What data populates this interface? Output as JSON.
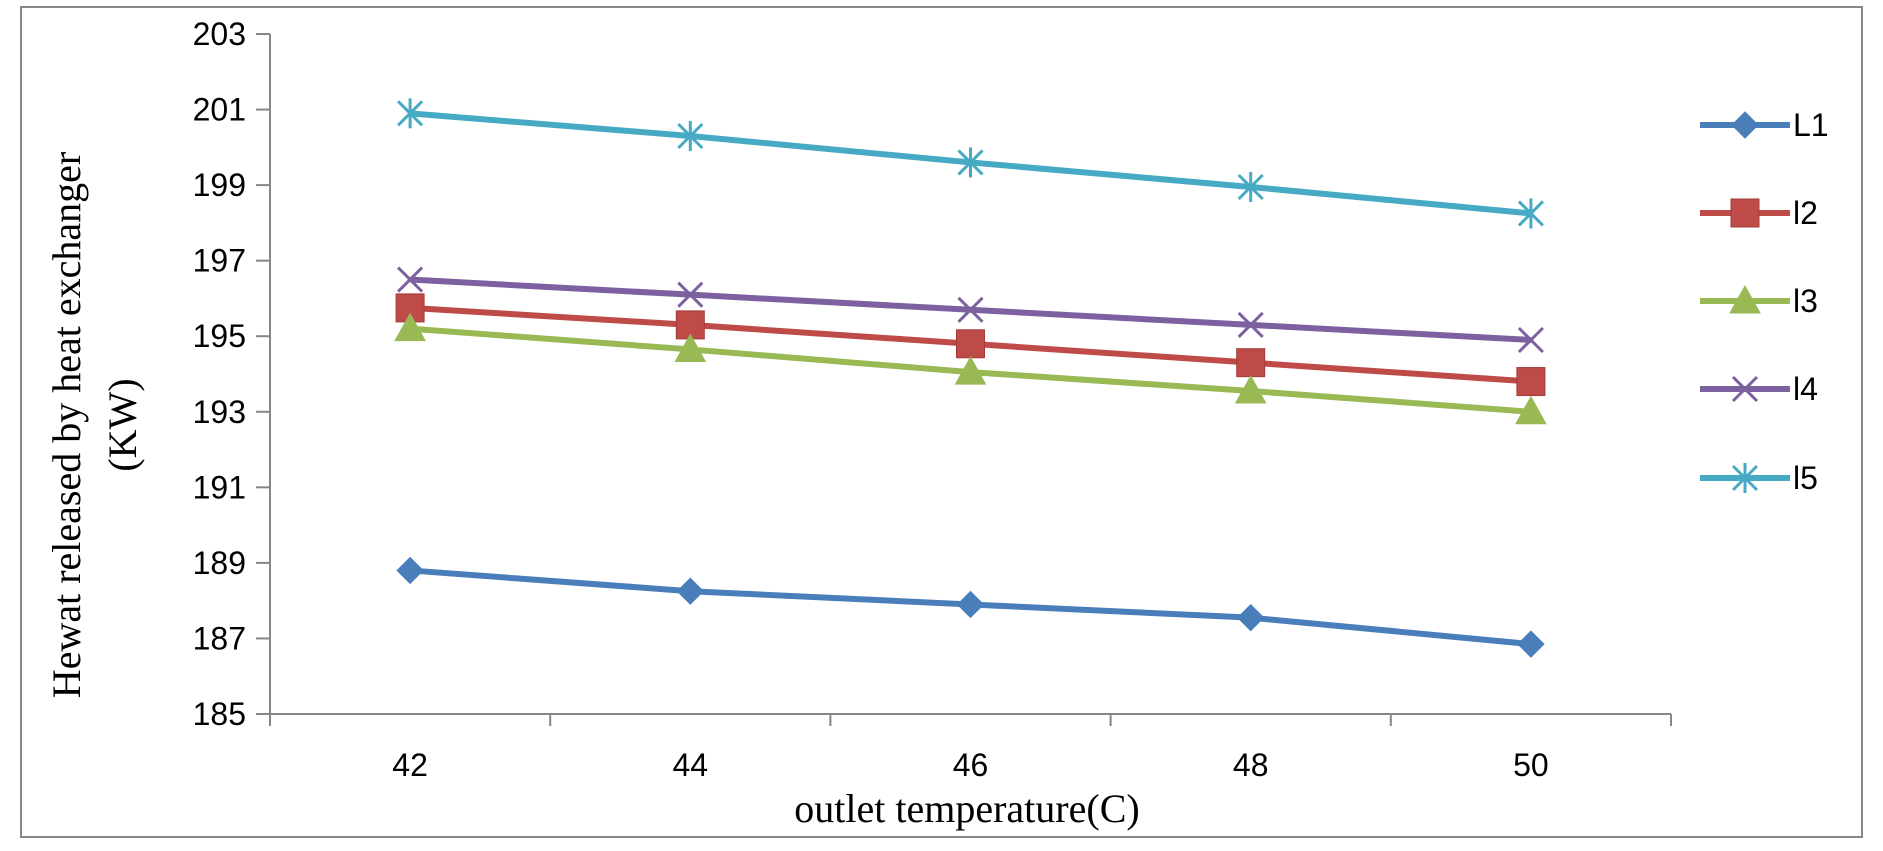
{
  "chart_data": {
    "type": "line",
    "title": "",
    "xlabel": "outlet temperature(C)",
    "ylabel_line1": "Hewat released by  heat exchanger",
    "ylabel_line2": "(KW)",
    "x": [
      42,
      44,
      46,
      48,
      50
    ],
    "xlim": [
      41,
      51
    ],
    "x_ticks": [
      42,
      44,
      46,
      48,
      50
    ],
    "ylim": [
      185,
      203
    ],
    "y_ticks": [
      185,
      187,
      189,
      191,
      193,
      195,
      197,
      199,
      201,
      203
    ],
    "grid": false,
    "legend_position": "right",
    "series": [
      {
        "name": "L1",
        "color": "#4A7EBB",
        "marker": "diamond",
        "values": [
          188.8,
          188.25,
          187.9,
          187.55,
          186.85
        ]
      },
      {
        "name": "l2",
        "color": "#BE4B48",
        "marker": "square",
        "values": [
          195.75,
          195.3,
          194.8,
          194.3,
          193.8
        ]
      },
      {
        "name": "l3",
        "color": "#98B954",
        "marker": "triangle",
        "values": [
          195.2,
          194.65,
          194.05,
          193.55,
          193.0
        ]
      },
      {
        "name": "l4",
        "color": "#7D60A0",
        "marker": "x",
        "values": [
          196.5,
          196.1,
          195.7,
          195.3,
          194.9
        ]
      },
      {
        "name": "l5",
        "color": "#46AAC5",
        "marker": "star",
        "values": [
          200.9,
          200.3,
          199.6,
          198.95,
          198.25
        ]
      }
    ]
  }
}
